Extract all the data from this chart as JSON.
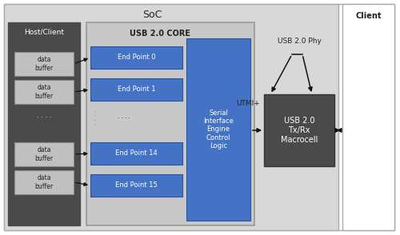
{
  "title": "SoC",
  "client_label": "Client",
  "host_label": "Host/Client",
  "usb_core_label": "USB 2.0 CORE",
  "endpoints": [
    "End Point 0",
    "End Point 1",
    "End Point 14",
    "End Point 15"
  ],
  "sie_label": "Serial\nInterface\nEngine\nControl\nLogic",
  "phy_label": "USB 2.0 Phy",
  "utmi_label": "UTMI+",
  "macrocell_label": "USB 2.0\nTx/Rx\nMacrocell",
  "data_buffer_label": "data\nbuffer",
  "bg_color": "#ffffff",
  "outer_box_edge": "#aaaaaa",
  "soc_box_color": "#d8d8d8",
  "soc_box_edge": "#aaaaaa",
  "host_box_color": "#4a4a4a",
  "host_box_edge": "#4a4a4a",
  "usb_core_box_color": "#c8c8c8",
  "usb_core_box_edge": "#999999",
  "endpoint_box_color": "#4472c4",
  "endpoint_box_edge": "#2a52a0",
  "sie_box_color": "#4472c4",
  "sie_box_edge": "#2a52a0",
  "macrocell_box_color": "#4a4a4a",
  "macrocell_box_edge": "#333333",
  "data_buffer_color": "#c0c0c0",
  "data_buffer_edge": "#888888",
  "client_box_color": "#ffffff",
  "client_box_edge": "#aaaaaa",
  "text_color_light": "#ffffff",
  "text_color_dark": "#222222",
  "arrow_color": "#111111"
}
